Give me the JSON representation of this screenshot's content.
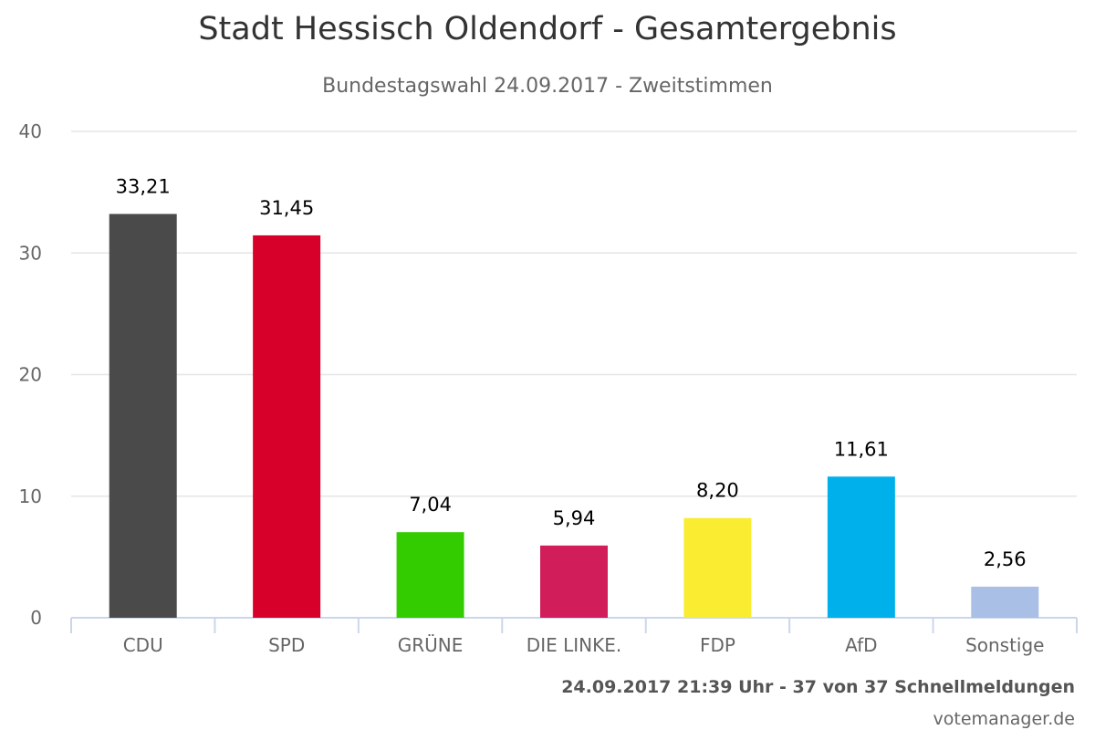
{
  "chart_data": {
    "type": "bar",
    "title": "Stadt Hessisch Oldendorf - Gesamtergebnis",
    "subtitle": "Bundestagswahl 24.09.2017 - Zweitstimmen",
    "categories": [
      "CDU",
      "SPD",
      "GRÜNE",
      "DIE LINKE.",
      "FDP",
      "AfD",
      "Sonstige"
    ],
    "values": [
      33.21,
      31.45,
      7.04,
      5.94,
      8.2,
      11.61,
      2.56
    ],
    "value_labels": [
      "33,21",
      "31,45",
      "7,04",
      "5,94",
      "8,20",
      "11,61",
      "2,56"
    ],
    "colors": [
      "#4a4a4a",
      "#d7002b",
      "#33cc00",
      "#d11d5a",
      "#f9ec31",
      "#00b0eb",
      "#aabfe6"
    ],
    "yticks": [
      0,
      10,
      20,
      30,
      40
    ],
    "ylim": [
      0,
      40
    ],
    "grid": true,
    "legend": "none"
  },
  "footer": "24.09.2017 21:39 Uhr - 37 von 37 Schnellmeldungen",
  "credit": "votemanager.de"
}
